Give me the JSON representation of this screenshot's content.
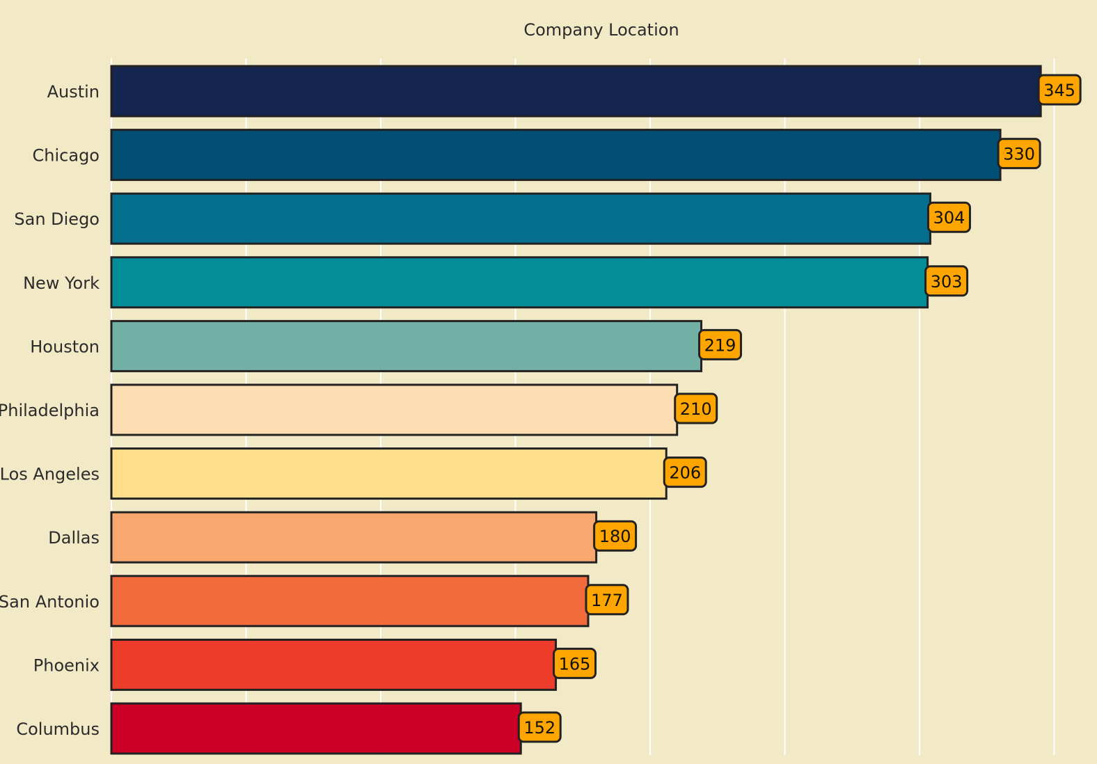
{
  "chart_data": {
    "type": "bar",
    "orientation": "horizontal",
    "title": "Company Location",
    "xlabel": "",
    "ylabel": "",
    "categories": [
      "Austin",
      "Chicago",
      "San Diego",
      "New York",
      "Houston",
      "Philadelphia",
      "Los Angeles",
      "Dallas",
      "San Antonio",
      "Phoenix",
      "Columbus"
    ],
    "values": [
      345,
      330,
      304,
      303,
      219,
      210,
      206,
      180,
      177,
      165,
      152
    ],
    "bar_colors": [
      "#14264f",
      "#024f75",
      "#046e8f",
      "#028d99",
      "#72afa5",
      "#fddeb3",
      "#feded4",
      "#f8a86e",
      "#f26b3c",
      "#ee3c2b",
      "#cc0026"
    ],
    "xlim": [
      0,
      360
    ],
    "grid": true,
    "grid_color": "#ffffff",
    "background_color": "#f2eac7",
    "bar_edge_color": "#222222",
    "label_box_color": "#ffa500",
    "legend": "none"
  }
}
